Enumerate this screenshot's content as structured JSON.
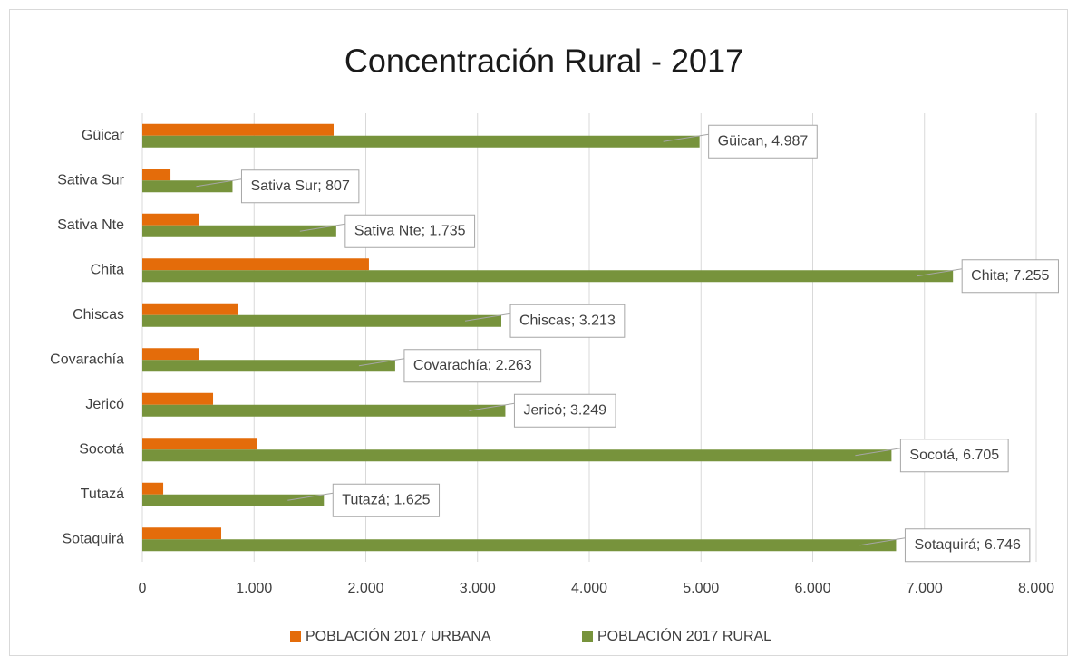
{
  "chart_data": {
    "type": "barh",
    "title": "Concentración Rural - 2017",
    "categories": [
      "Güicar",
      "Sativa Sur",
      "Sativa Nte",
      "Chita",
      "Chiscas",
      "Covarachía",
      "Jericó",
      "Socotá",
      "Tutazá",
      "Sotaquirá"
    ],
    "series": [
      {
        "name": "POBLACIÓN 2017 URBANA",
        "color": "#e46c0a",
        "values": [
          1712,
          252,
          511,
          2028,
          860,
          511,
          633,
          1030,
          187,
          706
        ]
      },
      {
        "name": "POBLACIÓN 2017 RURAL",
        "color": "#77933c",
        "values": [
          4987,
          807,
          1735,
          7255,
          3213,
          2263,
          3249,
          6705,
          1625,
          6746
        ],
        "value_labels": [
          "Güican, 4.987",
          "Sativa Sur; 807",
          "Sativa Nte; 1.735",
          "Chita; 7.255",
          "Chiscas; 3.213",
          "Covarachía; 2.263",
          "Jericó; 3.249",
          "Socotá, 6.705",
          "Tutazá; 1.625",
          "Sotaquirá; 6.746"
        ]
      }
    ],
    "xlim": [
      0,
      8000
    ],
    "xticks": [
      0,
      {
        "value": 1000,
        "label": "1.000"
      },
      {
        "value": 2000,
        "label": "2.000"
      },
      {
        "value": 3000,
        "label": "3.000"
      },
      {
        "value": 4000,
        "label": "4.000"
      },
      {
        "value": 5000,
        "label": "5.000"
      },
      {
        "value": 6000,
        "label": "6.000"
      },
      {
        "value": 7000,
        "label": "7.000"
      },
      {
        "value": 8000,
        "label": "8.000"
      }
    ],
    "grid": true,
    "legend": "bottom"
  }
}
